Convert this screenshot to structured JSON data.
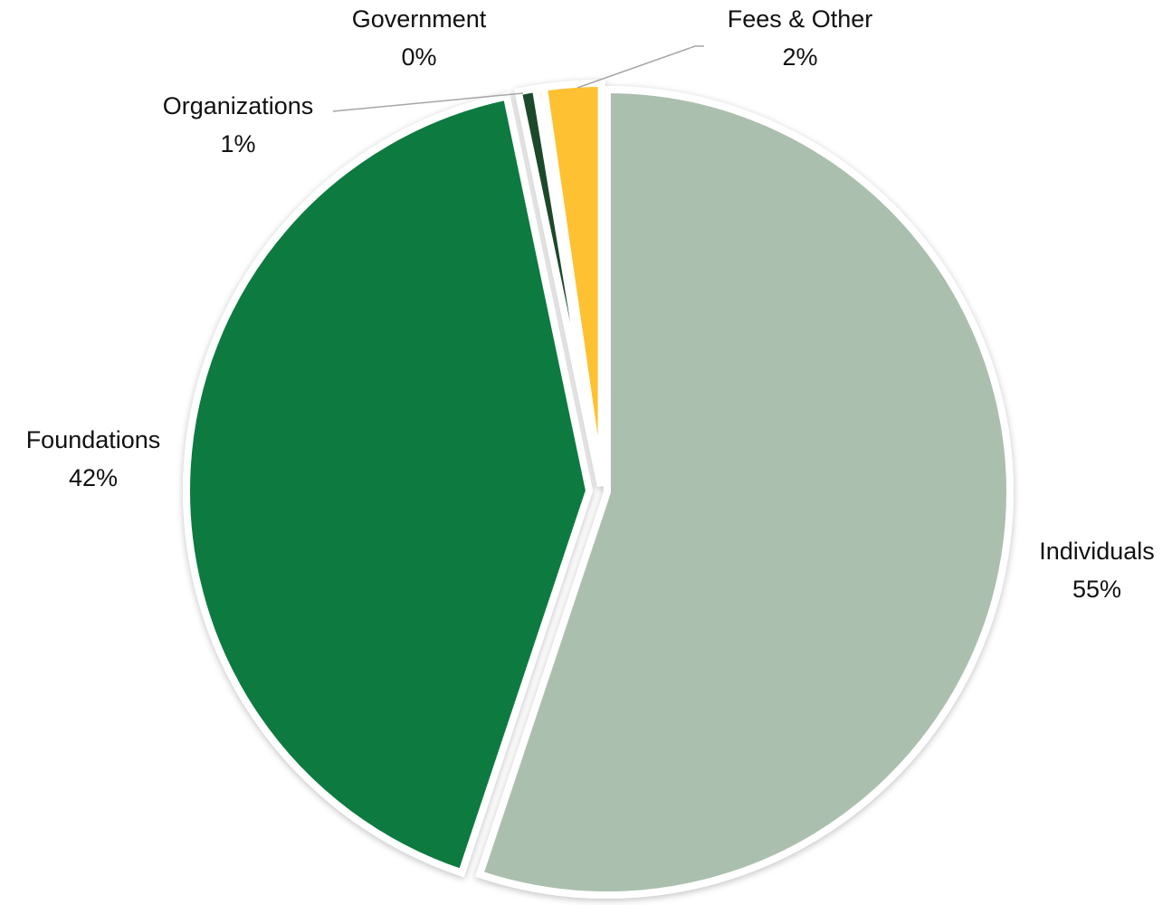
{
  "chart_data": {
    "type": "pie",
    "title": "",
    "slices": [
      {
        "label": "Individuals",
        "percent_label": "55%",
        "value": 55.4,
        "color": "#abbfae"
      },
      {
        "label": "Foundations",
        "percent_label": "42%",
        "value": 41.8,
        "color": "#107a41"
      },
      {
        "label": "Organizations",
        "percent_label": "1%",
        "value": 0.7,
        "color": "#1f4a29"
      },
      {
        "label": "Government",
        "percent_label": "0%",
        "value": 0.3,
        "color": "#fdc131"
      },
      {
        "label": "Fees & Other",
        "percent_label": "2%",
        "value": 2.3,
        "color": "#fdc131"
      }
    ],
    "legend": "none",
    "labels": "outside with leader lines for small slices"
  }
}
